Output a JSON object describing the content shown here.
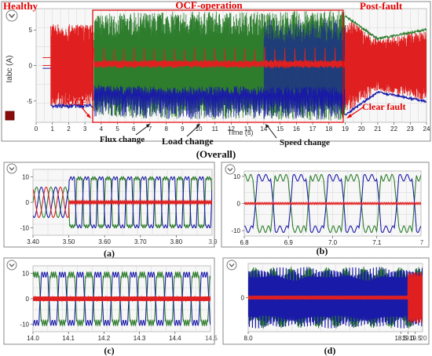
{
  "colors": {
    "phase_a": "#e02020",
    "phase_b": "#2d7d2d",
    "phase_c": "#1a1aa8",
    "annotation": "#e60000",
    "frame": "#8a8a8a",
    "grid": "#d6d6d6",
    "icon_fill": "#8b0a0a"
  },
  "icons": {
    "collapse": "chevron-down-icon",
    "legend_swatch": "square-icon"
  },
  "chart_data": [
    {
      "id": "overall",
      "type": "line",
      "title": "(Overall)",
      "xlabel": "Time (s)",
      "ylabel": "Iabc (A)",
      "xlim": [
        0,
        24
      ],
      "ylim": [
        -8,
        8
      ],
      "xticks": [
        0,
        1,
        2,
        3,
        4,
        5,
        6,
        7,
        8,
        9,
        10,
        11,
        12,
        13,
        14,
        15,
        16,
        17,
        18,
        19,
        20,
        21,
        22,
        23,
        24
      ],
      "yticks": [
        -5,
        0,
        5
      ],
      "grid": true,
      "series": [
        {
          "color": "#2d7d2d",
          "envelope": [
            [
              0.9,
              5.8
            ],
            [
              3.5,
              5.8
            ],
            [
              3.6,
              7.2
            ],
            [
              8,
              7.6
            ],
            [
              14,
              7.6
            ],
            [
              18.9,
              7.8
            ],
            [
              19,
              6.8
            ],
            [
              21,
              3.6
            ],
            [
              24,
              4.9
            ]
          ]
        },
        {
          "color": "#e02020",
          "envelope": [
            [
              0.9,
              5.8
            ],
            [
              3.5,
              5.8
            ],
            [
              3.6,
              0.6
            ],
            [
              18.9,
              0.6
            ],
            [
              19,
              6.8
            ],
            [
              21,
              3.6
            ],
            [
              24,
              4.9
            ]
          ]
        },
        {
          "color": "#1a1aa8",
          "envelope": [
            [
              0.9,
              5.8
            ],
            [
              3.5,
              5.8
            ],
            [
              3.6,
              7.2
            ],
            [
              8,
              7.6
            ],
            [
              14,
              7.6
            ],
            [
              18.9,
              7.8
            ],
            [
              19,
              6.8
            ],
            [
              21,
              3.6
            ],
            [
              24,
              4.9
            ]
          ]
        }
      ],
      "regions": [
        {
          "label": "Healthy"
        },
        {
          "label": "OCF-operation",
          "x": [
            3.5,
            19
          ]
        },
        {
          "label": "Post-fault"
        }
      ],
      "annotations": [
        {
          "label": "OCF",
          "x": 3.5
        },
        {
          "label": "Flux change",
          "x": 7
        },
        {
          "label": "Load change",
          "x": 10
        },
        {
          "label": "Speed change",
          "x": 14
        },
        {
          "label": "Clear fault",
          "x": 19
        }
      ]
    },
    {
      "id": "a",
      "caption": "(a)",
      "type": "line",
      "xlim": [
        3.4,
        3.9
      ],
      "ylim": [
        -13,
        13
      ],
      "xticks": [
        3.4,
        3.5,
        3.6,
        3.7,
        3.8
      ],
      "xtick_labels": [
        "3.40",
        "3.50",
        "3.60",
        "3.70",
        "3.80"
      ],
      "corner_label": "3.9",
      "yticks": [
        -10,
        0,
        10
      ],
      "grid": true,
      "fault_x": 3.5,
      "frequency_hz": 25,
      "amplitude_before": 6,
      "amplitude_after": 9.5
    },
    {
      "id": "b",
      "caption": "(b)",
      "type": "line",
      "xlim": [
        6.8,
        7.2
      ],
      "ylim": [
        -12,
        12
      ],
      "xticks": [
        6.8,
        6.9,
        7.0,
        7.1
      ],
      "xtick_labels": [
        "6.8",
        "6.9",
        "7.0",
        "7.1"
      ],
      "corner_label": "7",
      "yticks": [
        -10,
        0,
        10
      ],
      "grid": true,
      "frequency_hz": 12.5,
      "amplitude": 9.5
    },
    {
      "id": "c",
      "caption": "(c)",
      "type": "line",
      "xlim": [
        14.0,
        14.5
      ],
      "ylim": [
        -13,
        13
      ],
      "xticks": [
        14.0,
        14.1,
        14.2,
        14.3,
        14.4
      ],
      "xtick_labels": [
        "14.0",
        "14.1",
        "14.2",
        "14.3",
        "14.4"
      ],
      "corner_label": "14.5",
      "yticks": [
        -10,
        0,
        10
      ],
      "grid": true,
      "frequency_hz": 20,
      "amplitude": 9.5
    },
    {
      "id": "d",
      "caption": "(d)",
      "type": "line",
      "xlim": [
        8.0,
        20.0
      ],
      "ylim": [
        -10,
        10
      ],
      "xticks": [
        8.0,
        18.5,
        19.0,
        19.5
      ],
      "xtick_labels": [
        "8.0",
        "18.5",
        "19.0",
        "19.5"
      ],
      "corner_label": "20",
      "yticks": [
        0
      ],
      "grid": true,
      "fault_clear_x": 19.0,
      "amplitude": 7.5
    }
  ]
}
